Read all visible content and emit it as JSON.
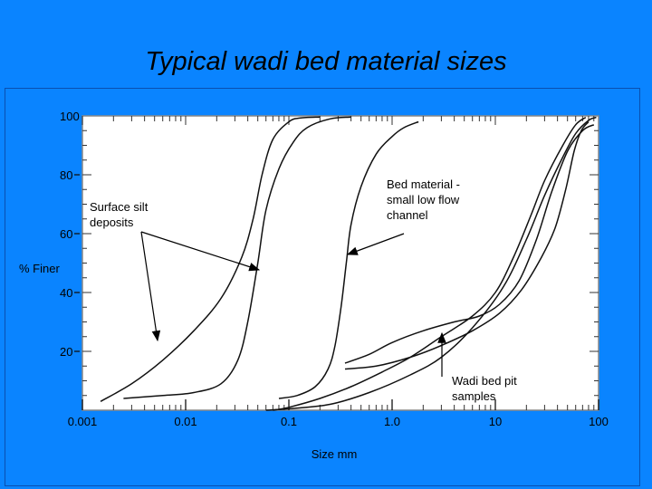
{
  "slide": {
    "title": "Typical wadi bed material sizes"
  },
  "colors": {
    "background": "#0a84ff",
    "plot_area": "#ffffff",
    "lines": "#111111"
  },
  "chart_data": {
    "type": "line",
    "title": "",
    "xlabel": "Size mm",
    "ylabel": "% Finer",
    "xscale": "log",
    "xlim": [
      0.001,
      100
    ],
    "ylim": [
      0,
      100
    ],
    "x_ticks": [
      {
        "value": 0.001,
        "label": "0.001"
      },
      {
        "value": 0.01,
        "label": "0.01"
      },
      {
        "value": 0.1,
        "label": "0.1"
      },
      {
        "value": 1,
        "label": "1.0"
      },
      {
        "value": 10,
        "label": "10"
      },
      {
        "value": 100,
        "label": "100"
      }
    ],
    "y_ticks": [
      {
        "value": 20,
        "label": "20"
      },
      {
        "value": 40,
        "label": "40"
      },
      {
        "value": 60,
        "label": "60"
      },
      {
        "value": 80,
        "label": "80"
      },
      {
        "value": 100,
        "label": "100"
      }
    ],
    "grid": false,
    "series": [
      {
        "group": "surface_silt",
        "points": [
          [
            0.0015,
            3
          ],
          [
            0.003,
            9
          ],
          [
            0.006,
            17
          ],
          [
            0.012,
            27
          ],
          [
            0.022,
            38
          ],
          [
            0.035,
            52
          ],
          [
            0.045,
            65
          ],
          [
            0.055,
            80
          ],
          [
            0.07,
            92
          ],
          [
            0.1,
            98
          ],
          [
            0.13,
            99.3
          ],
          [
            0.2,
            99.6
          ]
        ]
      },
      {
        "group": "surface_silt",
        "points": [
          [
            0.0025,
            4
          ],
          [
            0.006,
            5
          ],
          [
            0.012,
            6
          ],
          [
            0.022,
            9
          ],
          [
            0.032,
            17
          ],
          [
            0.04,
            30
          ],
          [
            0.05,
            50
          ],
          [
            0.06,
            68
          ],
          [
            0.08,
            82
          ],
          [
            0.11,
            91
          ],
          [
            0.15,
            96
          ],
          [
            0.25,
            99
          ],
          [
            0.4,
            99.6
          ]
        ]
      },
      {
        "group": "bed_material",
        "points": [
          [
            0.08,
            4
          ],
          [
            0.12,
            5
          ],
          [
            0.18,
            8
          ],
          [
            0.24,
            14
          ],
          [
            0.28,
            22
          ],
          [
            0.32,
            35
          ],
          [
            0.36,
            50
          ],
          [
            0.4,
            63
          ],
          [
            0.5,
            76
          ],
          [
            0.7,
            87
          ],
          [
            1,
            93
          ],
          [
            1.3,
            96
          ],
          [
            1.8,
            98
          ]
        ]
      },
      {
        "group": "bed_material",
        "points": [
          [
            0.07,
            0
          ],
          [
            0.1,
            1
          ],
          [
            0.2,
            4
          ],
          [
            0.4,
            8
          ],
          [
            0.8,
            13
          ],
          [
            1.5,
            18
          ],
          [
            3,
            25
          ],
          [
            6,
            32
          ],
          [
            10,
            40
          ],
          [
            15,
            52
          ],
          [
            22,
            66
          ],
          [
            30,
            78
          ],
          [
            45,
            90
          ],
          [
            60,
            97
          ],
          [
            75,
            99.5
          ]
        ]
      },
      {
        "group": "pit_samples",
        "points": [
          [
            0.06,
            0
          ],
          [
            0.1,
            0.5
          ],
          [
            0.25,
            2
          ],
          [
            0.6,
            6
          ],
          [
            1.5,
            12
          ],
          [
            3,
            18
          ],
          [
            6,
            28
          ],
          [
            12,
            42
          ],
          [
            20,
            58
          ],
          [
            30,
            73
          ],
          [
            45,
            86
          ],
          [
            60,
            94
          ],
          [
            80,
            98.5
          ],
          [
            95,
            99.5
          ]
        ]
      },
      {
        "group": "pit_samples",
        "points": [
          [
            0.35,
            16
          ],
          [
            0.6,
            19
          ],
          [
            1,
            23
          ],
          [
            2,
            27
          ],
          [
            4,
            30
          ],
          [
            7,
            32
          ],
          [
            11,
            36
          ],
          [
            17,
            44
          ],
          [
            25,
            58
          ],
          [
            35,
            74
          ],
          [
            50,
            88
          ],
          [
            70,
            95
          ],
          [
            90,
            97
          ]
        ]
      },
      {
        "group": "pit_samples",
        "points": [
          [
            0.35,
            14
          ],
          [
            0.7,
            15
          ],
          [
            1.5,
            18
          ],
          [
            3,
            22
          ],
          [
            6,
            27
          ],
          [
            11,
            33
          ],
          [
            18,
            41
          ],
          [
            28,
            52
          ],
          [
            38,
            62
          ],
          [
            48,
            75
          ],
          [
            58,
            88
          ],
          [
            68,
            95
          ],
          [
            80,
            98
          ]
        ]
      }
    ],
    "annotations": [
      {
        "text_lines": [
          "Surface silt",
          "deposits"
        ],
        "target_group": "surface_silt"
      },
      {
        "text_lines": [
          "Bed material -",
          "small low flow",
          "channel"
        ],
        "target_group": "bed_material"
      },
      {
        "text_lines": [
          "Wadi bed pit",
          "samples"
        ],
        "target_group": "pit_samples"
      }
    ]
  }
}
